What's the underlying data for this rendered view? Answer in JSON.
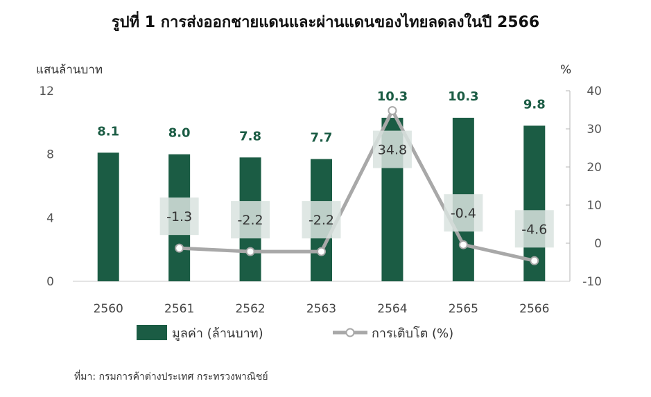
{
  "chart_data": {
    "type": "bar",
    "title": "รูปที่ 1 การส่งออกชายแดนและผ่านแดนของไทยลดลงในปี 2566",
    "ylabel": "แสนล้านบาท",
    "y2label": "%",
    "categories": [
      "2560",
      "2561",
      "2562",
      "2563",
      "2564",
      "2565",
      "2566"
    ],
    "ylim": [
      0,
      12
    ],
    "yticks": [
      "0",
      "4",
      "8",
      "12"
    ],
    "y2lim": [
      -10,
      40
    ],
    "y2ticks": [
      "-10",
      "0",
      "10",
      "20",
      "30",
      "40"
    ],
    "series": [
      {
        "name": "มูลค่า (ล้านบาท)",
        "type": "bar",
        "axis": "left",
        "values": [
          8.1,
          8.0,
          7.8,
          7.7,
          10.3,
          10.3,
          9.8
        ],
        "labels": [
          "8.1",
          "8.0",
          "7.8",
          "7.7",
          "10.3",
          "10.3",
          "9.8"
        ]
      },
      {
        "name": "การเติบโต (%)",
        "type": "line",
        "axis": "right",
        "values": [
          null,
          -1.3,
          -2.2,
          -2.2,
          34.8,
          -0.4,
          -4.6
        ],
        "labels": [
          "",
          "-1.3",
          "-2.2",
          "-2.2",
          "34.8",
          "-0.4",
          "-4.6"
        ]
      }
    ],
    "grid": false,
    "legend": "bottom",
    "colors": {
      "bar": "#1b5c44",
      "bar_label": "#1b5c44",
      "line": "#a8a8a8",
      "label_box": "#d9e3df"
    },
    "source": "ที่มา: กรมการค้าต่างประเทศ กระทรวงพาณิชย์"
  }
}
